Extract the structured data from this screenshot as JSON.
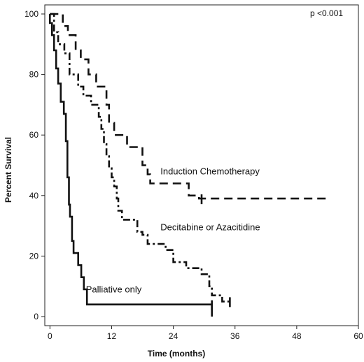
{
  "chart_data": {
    "type": "line",
    "xlabel": "Time (months)",
    "ylabel": "Percent Survival",
    "annotation": "p <0.001",
    "xlim": [
      -1,
      60
    ],
    "ylim": [
      -3,
      103
    ],
    "xticks": [
      0,
      12,
      24,
      36,
      48,
      60
    ],
    "yticks": [
      0,
      20,
      40,
      60,
      80,
      100
    ],
    "grid": false,
    "legend": "inline labels",
    "series": [
      {
        "name": "Induction Chemotherapy",
        "dash": "long-dash",
        "points": [
          [
            0,
            100
          ],
          [
            2.5,
            100
          ],
          [
            2.5,
            96
          ],
          [
            3.5,
            96
          ],
          [
            3.5,
            93
          ],
          [
            5,
            93
          ],
          [
            5,
            88
          ],
          [
            6,
            88
          ],
          [
            6,
            85
          ],
          [
            7.5,
            85
          ],
          [
            7.5,
            80
          ],
          [
            9,
            80
          ],
          [
            9,
            76
          ],
          [
            11,
            76
          ],
          [
            11,
            70
          ],
          [
            11.5,
            70
          ],
          [
            11.5,
            64
          ],
          [
            12.5,
            64
          ],
          [
            12.5,
            60
          ],
          [
            15,
            60
          ],
          [
            15,
            56
          ],
          [
            18,
            56
          ],
          [
            18,
            50
          ],
          [
            19,
            50
          ],
          [
            19,
            47
          ],
          [
            19.5,
            47
          ],
          [
            19.5,
            44
          ],
          [
            27,
            44
          ],
          [
            27,
            40
          ],
          [
            29,
            40
          ],
          [
            29,
            39
          ],
          [
            54,
            39
          ]
        ],
        "censors": [
          [
            29.5,
            39
          ]
        ]
      },
      {
        "name": "Decitabine or Azacitidine",
        "dash": "dash-dot",
        "points": [
          [
            0,
            100
          ],
          [
            0.8,
            100
          ],
          [
            0.8,
            94
          ],
          [
            1.6,
            94
          ],
          [
            1.6,
            90
          ],
          [
            2.8,
            90
          ],
          [
            2.8,
            87
          ],
          [
            3.8,
            87
          ],
          [
            3.8,
            80
          ],
          [
            5.5,
            80
          ],
          [
            5.5,
            76
          ],
          [
            6.5,
            76
          ],
          [
            6.5,
            73
          ],
          [
            8,
            73
          ],
          [
            8,
            70
          ],
          [
            9.5,
            70
          ],
          [
            9.5,
            66
          ],
          [
            10,
            66
          ],
          [
            10,
            62
          ],
          [
            10.5,
            62
          ],
          [
            10.5,
            57
          ],
          [
            11,
            57
          ],
          [
            11,
            53
          ],
          [
            11.5,
            53
          ],
          [
            11.5,
            49
          ],
          [
            12,
            49
          ],
          [
            12,
            46
          ],
          [
            12.5,
            46
          ],
          [
            12.5,
            43
          ],
          [
            13,
            43
          ],
          [
            13,
            39
          ],
          [
            13.3,
            39
          ],
          [
            13.3,
            35
          ],
          [
            14,
            35
          ],
          [
            14,
            32
          ],
          [
            17,
            32
          ],
          [
            17,
            28
          ],
          [
            18,
            28
          ],
          [
            18,
            27
          ],
          [
            19,
            27
          ],
          [
            19,
            24
          ],
          [
            22.5,
            24
          ],
          [
            22.5,
            22
          ],
          [
            24,
            22
          ],
          [
            24,
            18
          ],
          [
            26.5,
            18
          ],
          [
            26.5,
            16
          ],
          [
            29.5,
            16
          ],
          [
            29.5,
            14
          ],
          [
            31,
            14
          ],
          [
            31,
            10
          ],
          [
            31.5,
            10
          ],
          [
            31.5,
            7
          ],
          [
            33.5,
            7
          ],
          [
            33.5,
            5
          ],
          [
            35,
            5
          ]
        ],
        "censors": [
          [
            35,
            5
          ]
        ]
      },
      {
        "name": "Palliative only",
        "dash": "solid",
        "points": [
          [
            0,
            100
          ],
          [
            0,
            97
          ],
          [
            0.4,
            97
          ],
          [
            0.4,
            93
          ],
          [
            0.8,
            93
          ],
          [
            0.8,
            88
          ],
          [
            1.2,
            88
          ],
          [
            1.2,
            82
          ],
          [
            1.6,
            82
          ],
          [
            1.6,
            77
          ],
          [
            2.1,
            77
          ],
          [
            2.1,
            71
          ],
          [
            2.7,
            71
          ],
          [
            2.7,
            67
          ],
          [
            3.1,
            67
          ],
          [
            3.1,
            58
          ],
          [
            3.4,
            58
          ],
          [
            3.4,
            46
          ],
          [
            3.7,
            46
          ],
          [
            3.7,
            37
          ],
          [
            3.9,
            37
          ],
          [
            3.9,
            33
          ],
          [
            4.3,
            33
          ],
          [
            4.3,
            25
          ],
          [
            4.6,
            25
          ],
          [
            4.6,
            21
          ],
          [
            5.5,
            21
          ],
          [
            5.5,
            17
          ],
          [
            6.1,
            17
          ],
          [
            6.1,
            13
          ],
          [
            6.6,
            13
          ],
          [
            6.6,
            9
          ],
          [
            7.2,
            9
          ],
          [
            7.2,
            4
          ],
          [
            31.5,
            4
          ],
          [
            31.5,
            0
          ]
        ],
        "censors": [
          [
            31.5,
            4
          ]
        ]
      }
    ],
    "labels": [
      {
        "series": 0,
        "x": 21.5,
        "y": 47
      },
      {
        "series": 1,
        "x": 21.5,
        "y": 28.5
      },
      {
        "series": 2,
        "x": 7,
        "y": 8
      }
    ]
  }
}
